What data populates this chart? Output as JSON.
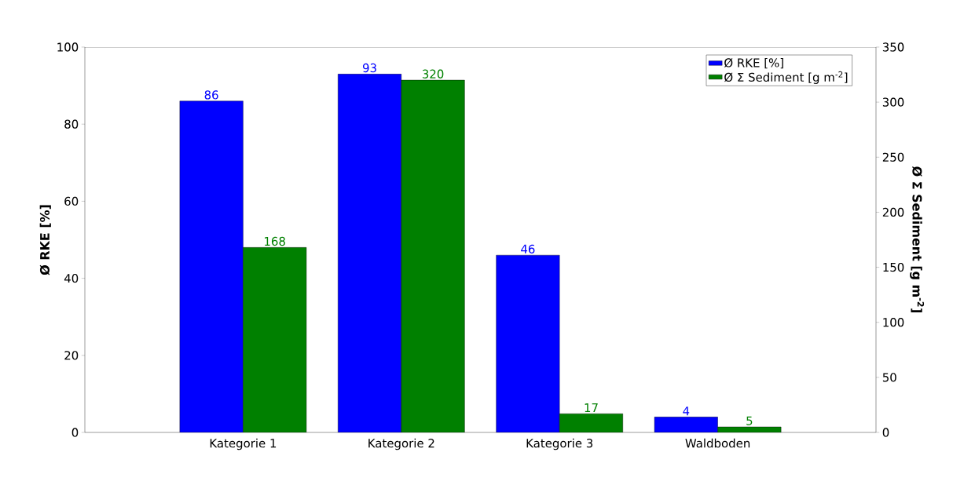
{
  "chart_data": {
    "type": "bar",
    "categories": [
      "Kategorie 1",
      "Kategorie 2",
      "Kategorie 3",
      "Waldboden"
    ],
    "series": [
      {
        "name": "Ø RKE [%]",
        "color": "#0000ff",
        "values": [
          86,
          93,
          46,
          4
        ]
      },
      {
        "name": "Ø Σ Sediment [g m$^{-2}$]",
        "color": "#008000",
        "values": [
          168,
          320,
          17,
          5
        ],
        "axis": "y2"
      }
    ],
    "ylabel": "Ø RKE [%]",
    "y2label": "Ø Σ Sediment [g m$^{-2}$]",
    "ylim": [
      0,
      100
    ],
    "yticks": [
      0,
      20,
      40,
      60,
      80,
      100
    ],
    "y2lim": [
      0,
      350
    ],
    "y2ticks": [
      0,
      50,
      100,
      150,
      200,
      250,
      300,
      350
    ],
    "data_labels": true,
    "legend": "top right",
    "grid": false
  }
}
